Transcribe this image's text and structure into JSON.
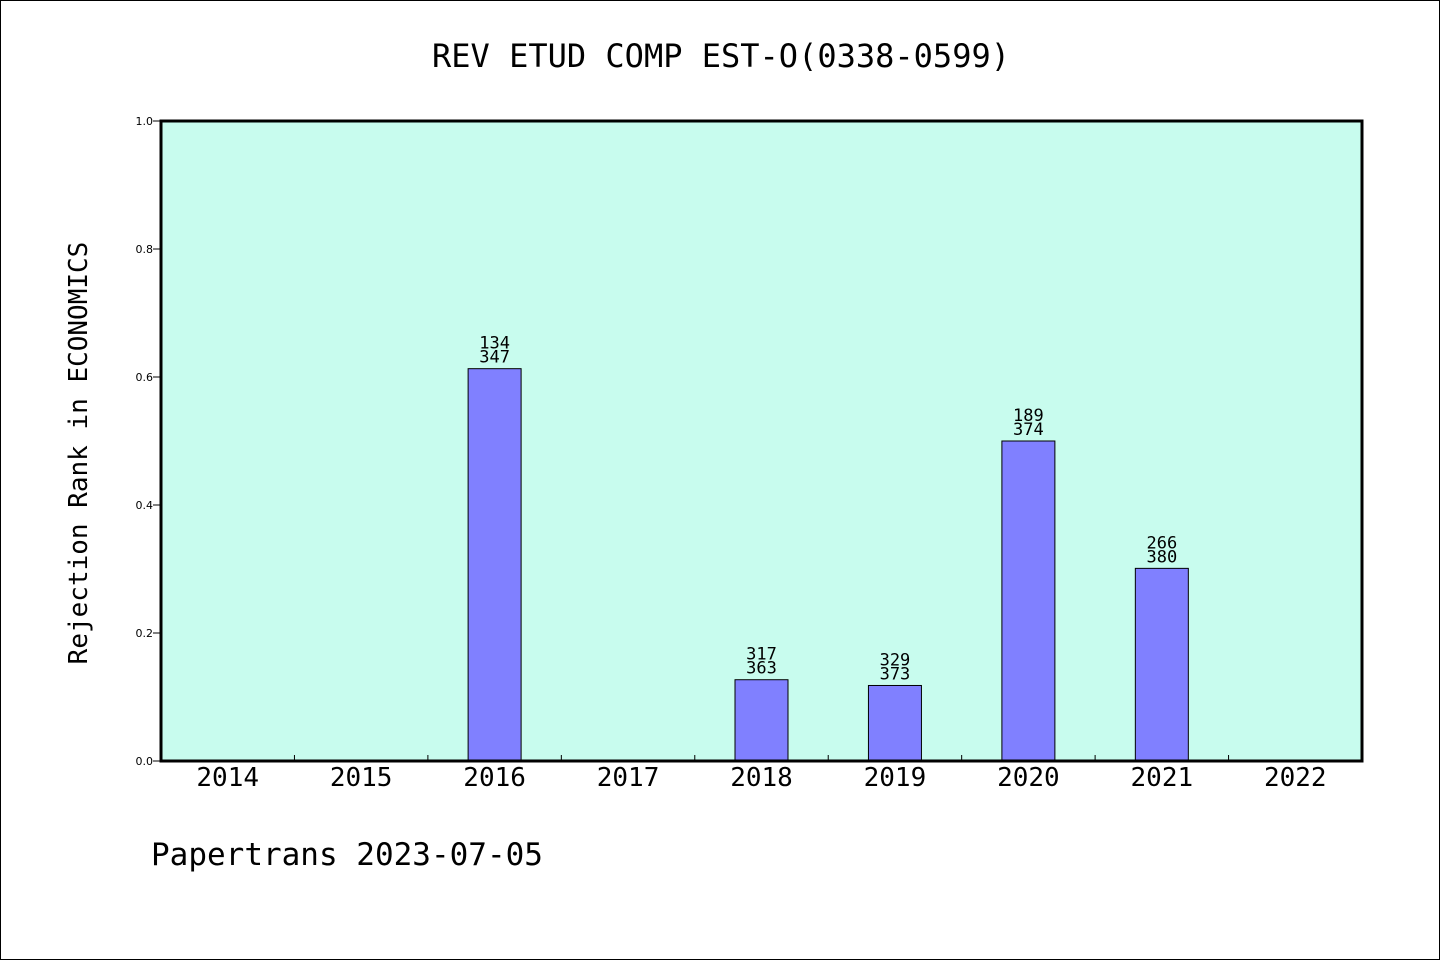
{
  "chart_data": {
    "type": "bar",
    "title": "REV ETUD COMP EST-O(0338-0599)",
    "ylabel": "Rejection Rank in ECONOMICS",
    "xlabel": "",
    "footer": "Papertrans 2023-07-05",
    "categories": [
      "2014",
      "2015",
      "2016",
      "2017",
      "2018",
      "2019",
      "2020",
      "2021",
      "2022"
    ],
    "values": [
      null,
      null,
      0.613,
      null,
      0.127,
      0.118,
      0.5,
      0.301,
      null
    ],
    "bar_labels": [
      null,
      null,
      [
        "134",
        "347"
      ],
      null,
      [
        "317",
        "363"
      ],
      [
        "329",
        "373"
      ],
      [
        "189",
        "374"
      ],
      [
        "266",
        "380"
      ],
      null
    ],
    "ylim": [
      0,
      1
    ],
    "yticks": [
      "0.0",
      "0.2",
      "0.4",
      "0.6",
      "0.8",
      "1.0"
    ],
    "grid": false,
    "colors": {
      "plot_background": "#c8fcee",
      "bar_fill": "#8080ff",
      "bar_stroke": "#000000"
    }
  }
}
